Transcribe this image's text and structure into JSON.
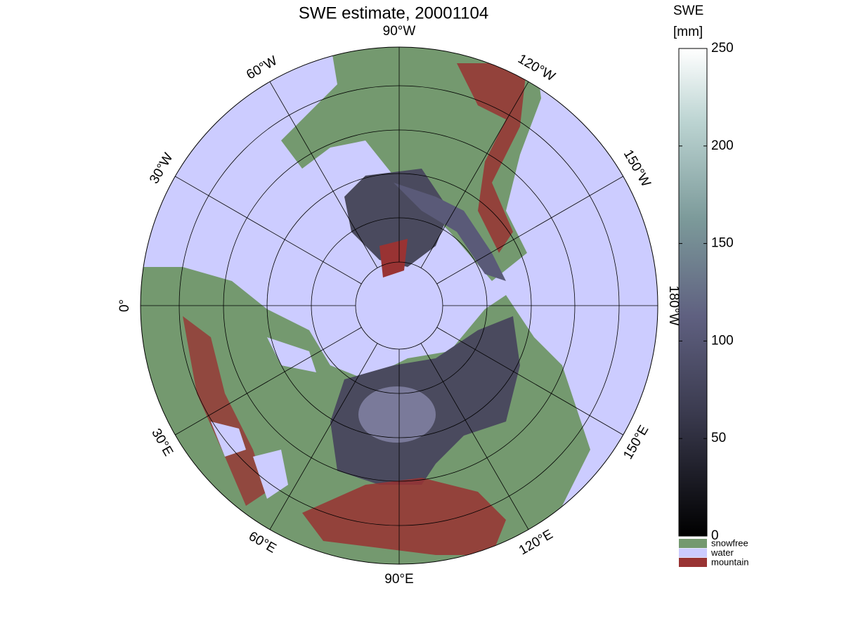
{
  "map": {
    "title": "SWE estimate, 20001104",
    "longitude_labels": [
      "90°W",
      "120°W",
      "150°W",
      "180°W",
      "150°E",
      "120°E",
      "90°E",
      "60°E",
      "30°E",
      "0°",
      "30°W",
      "60°W"
    ],
    "colorbar": {
      "label": [
        "SWE",
        "[mm]"
      ],
      "range": [
        0,
        250
      ],
      "ticks": [
        0,
        50,
        100,
        150,
        200,
        250
      ]
    },
    "legend": [
      {
        "name": "snowfree",
        "color": "#74996f"
      },
      {
        "name": "water",
        "color": "#ccccff"
      },
      {
        "name": "mountain",
        "color": "#993333"
      }
    ]
  }
}
